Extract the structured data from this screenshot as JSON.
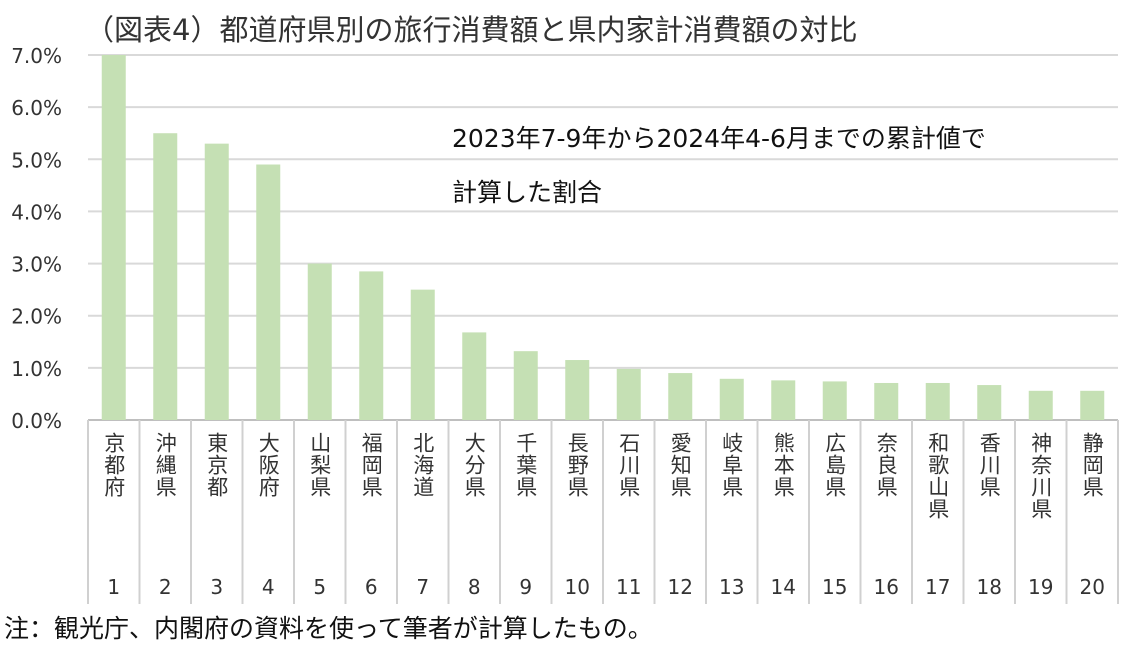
{
  "chart_data": {
    "type": "bar",
    "title": "（図表4）都道府県別の旅行消費額と県内家計消費額の対比",
    "annotation": [
      "2023年7-9年から2024年4-6月までの累計値で",
      "計算した割合"
    ],
    "note": "注：観光庁、内閣府の資料を使って筆者が計算したもの。",
    "categories": [
      "京都府",
      "沖縄県",
      "東京都",
      "大阪府",
      "山梨県",
      "福岡県",
      "北海道",
      "大分県",
      "千葉県",
      "長野県",
      "石川県",
      "愛知県",
      "岐阜県",
      "熊本県",
      "広島県",
      "奈良県",
      "和歌山県",
      "香川県",
      "神奈川県",
      "静岡県"
    ],
    "ranks": [
      "1",
      "2",
      "3",
      "4",
      "5",
      "6",
      "7",
      "8",
      "9",
      "10",
      "11",
      "12",
      "13",
      "14",
      "15",
      "16",
      "17",
      "18",
      "19",
      "20"
    ],
    "values": [
      7.0,
      5.5,
      5.3,
      4.9,
      3.0,
      2.85,
      2.5,
      1.68,
      1.32,
      1.15,
      0.98,
      0.9,
      0.79,
      0.76,
      0.74,
      0.71,
      0.71,
      0.67,
      0.56,
      0.56
    ],
    "unit": "%",
    "ylim": [
      0,
      7
    ],
    "yticks": [
      "0.0%",
      "1.0%",
      "2.0%",
      "3.0%",
      "4.0%",
      "5.0%",
      "6.0%",
      "7.0%"
    ],
    "grid": true,
    "bar_color": "#c5e0b4",
    "grid_color": "#d9d9d9"
  }
}
